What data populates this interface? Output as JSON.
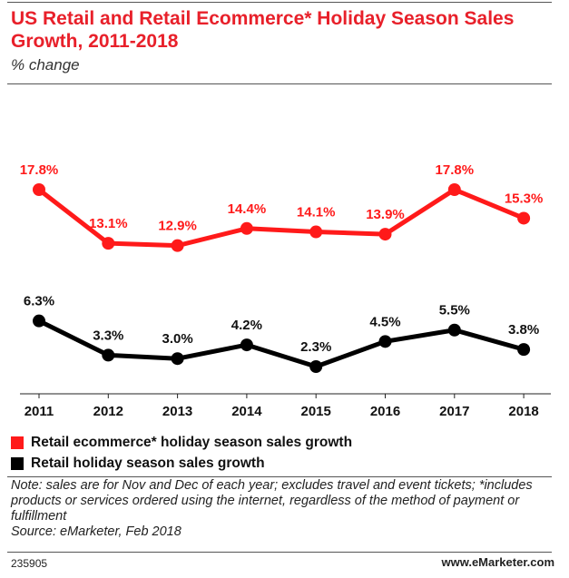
{
  "title": "US Retail and Retail Ecommerce* Holiday Season Sales Growth, 2011-2018",
  "subtitle": "% change",
  "legend": [
    {
      "label": "Retail ecommerce* holiday season sales growth",
      "color": "#ff1a1a"
    },
    {
      "label": "Retail holiday season sales growth",
      "color": "#000000"
    }
  ],
  "note": "Note: sales are for Nov and Dec of each year; excludes travel and event tickets; *includes products or services ordered using the internet, regardless of the method of payment or fulfillment",
  "source": "Source: eMarketer, Feb 2018",
  "footer": {
    "chart_id": "235905",
    "brand": "www.eMarketer.com"
  },
  "chart_data": {
    "type": "line",
    "x": [
      "2011",
      "2012",
      "2013",
      "2014",
      "2015",
      "2016",
      "2017",
      "2018"
    ],
    "series": [
      {
        "name": "Retail ecommerce* holiday season sales growth",
        "color": "#ff1a1a",
        "values": [
          17.8,
          13.1,
          12.9,
          14.4,
          14.1,
          13.9,
          17.8,
          15.3
        ],
        "labels": [
          "17.8%",
          "13.1%",
          "12.9%",
          "14.4%",
          "14.1%",
          "13.9%",
          "17.8%",
          "15.3%"
        ]
      },
      {
        "name": "Retail holiday season sales growth",
        "color": "#000000",
        "values": [
          6.3,
          3.3,
          3.0,
          4.2,
          2.3,
          4.5,
          5.5,
          3.8
        ],
        "labels": [
          "6.3%",
          "3.3%",
          "3.0%",
          "4.2%",
          "2.3%",
          "4.5%",
          "5.5%",
          "3.8%"
        ]
      }
    ],
    "title": "",
    "xlabel": "",
    "ylabel": "",
    "grid": false
  }
}
